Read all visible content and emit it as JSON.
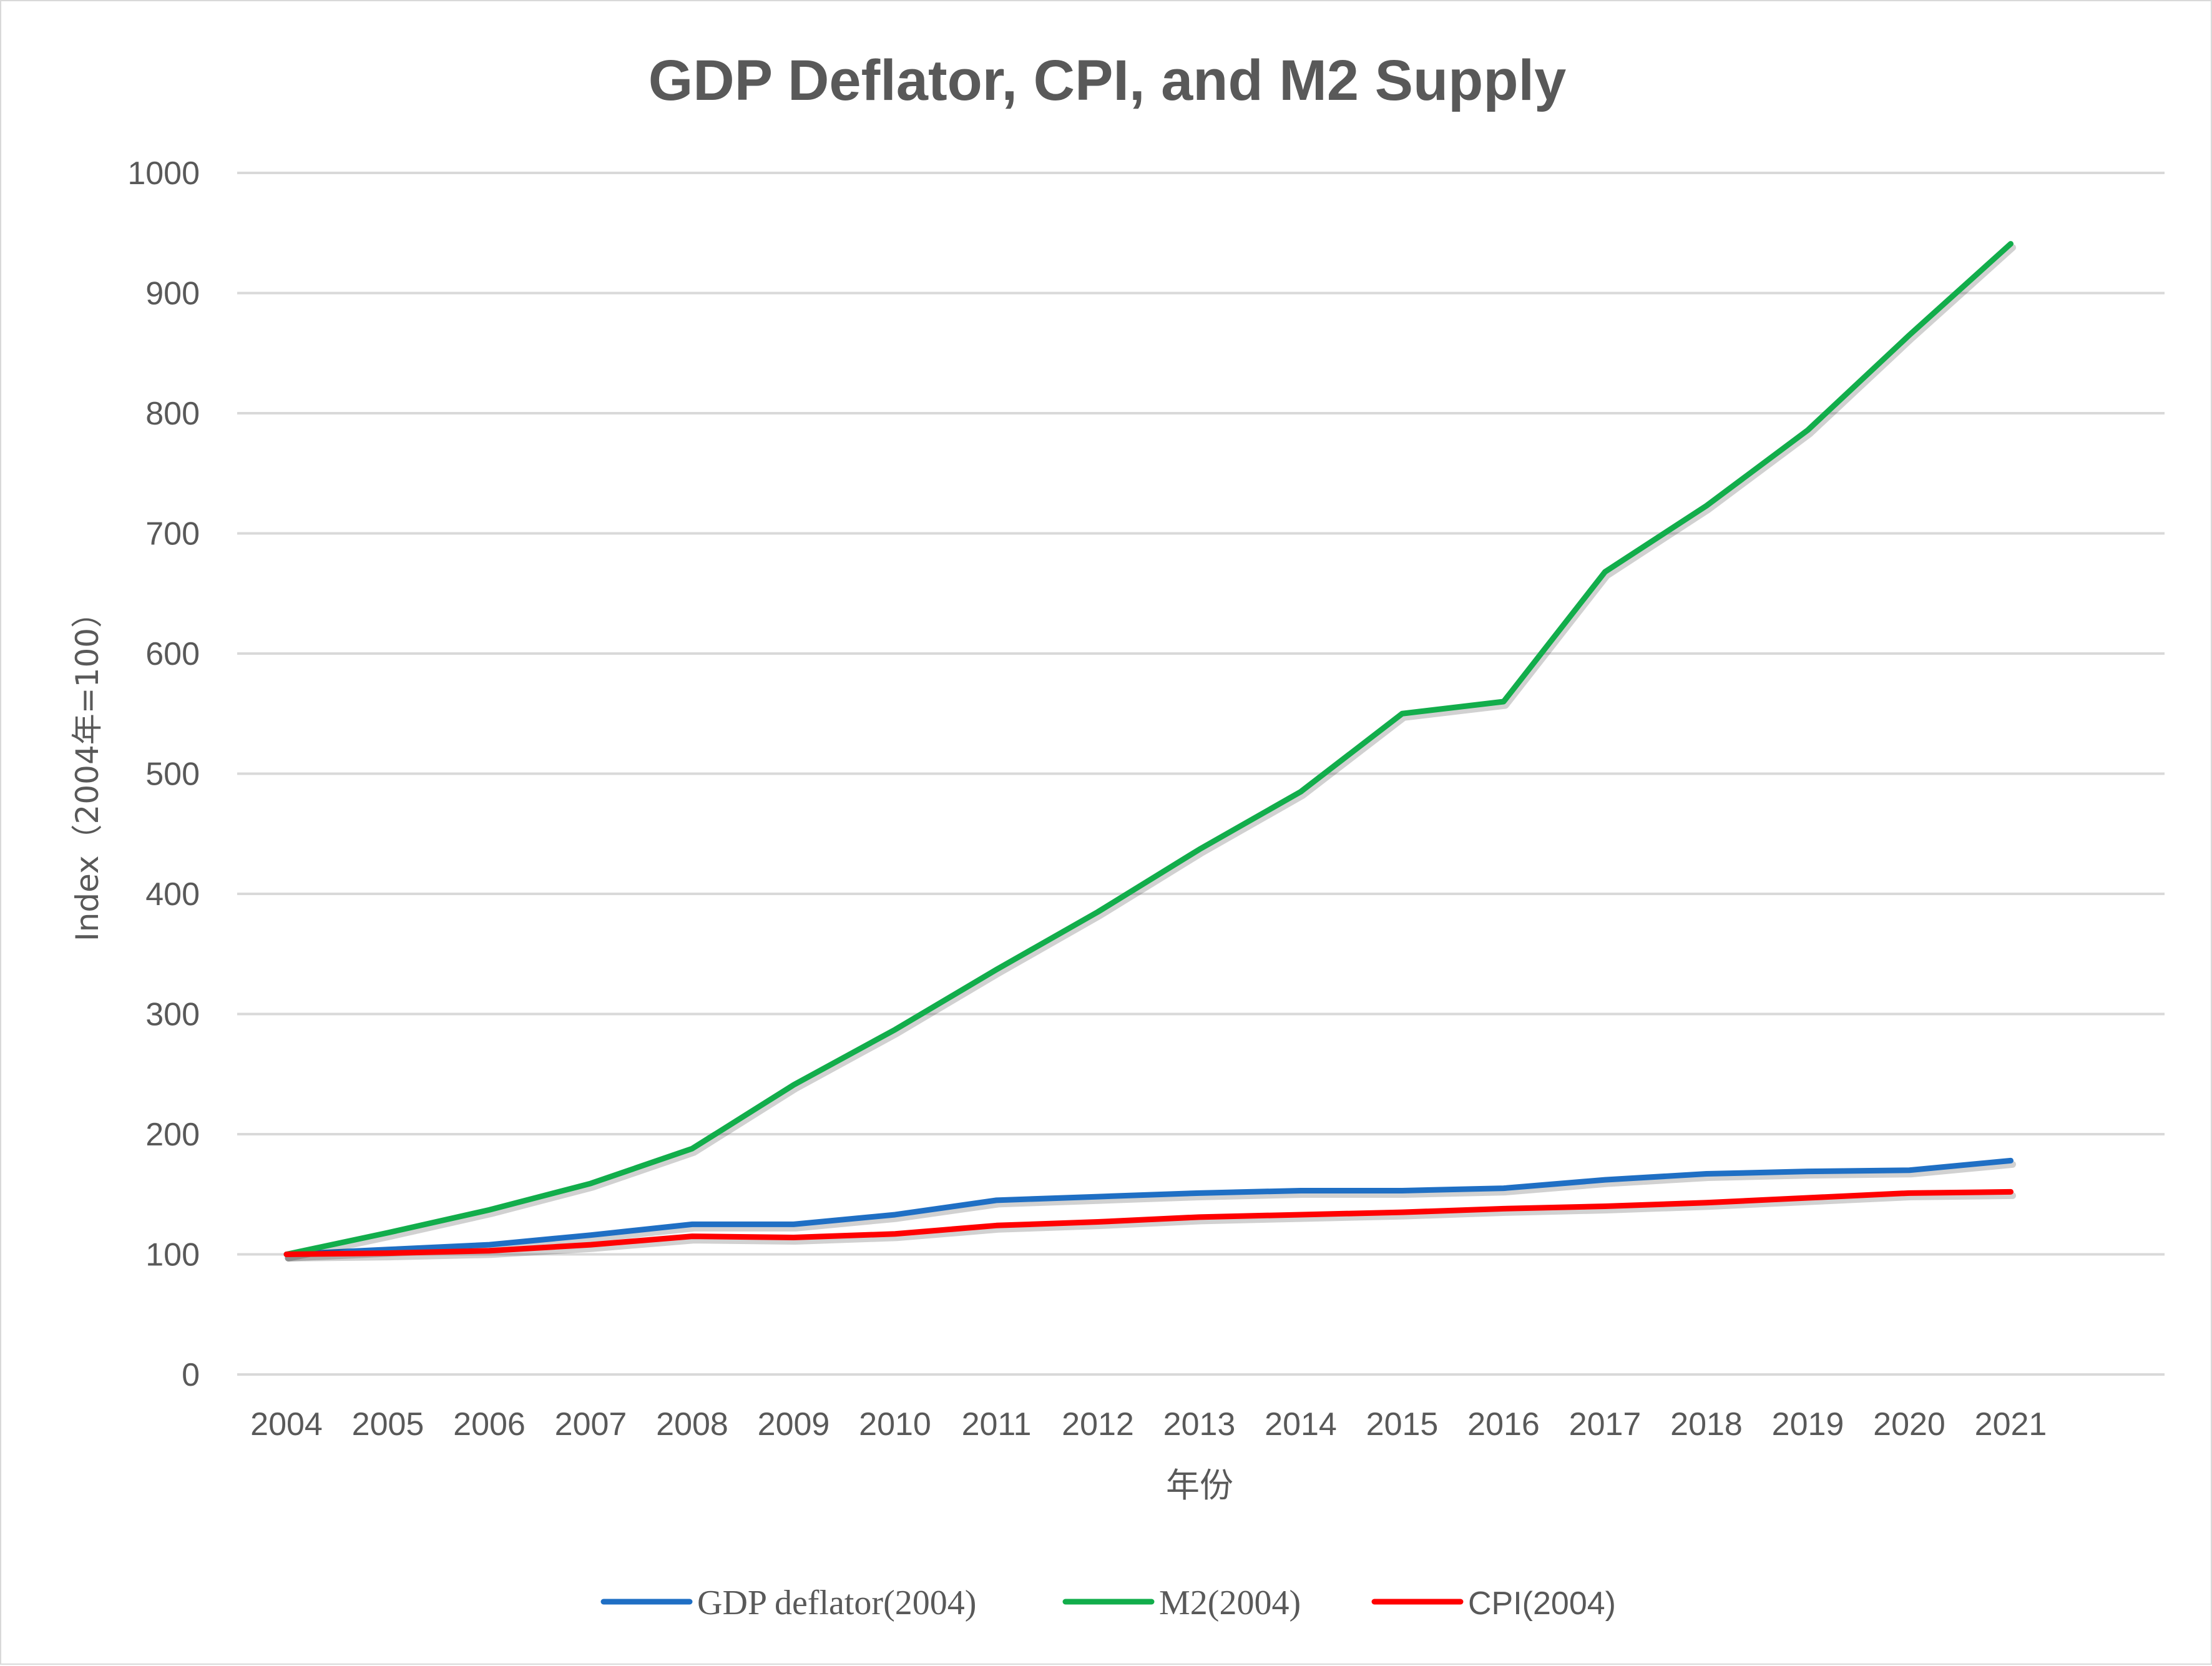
{
  "chart_data": {
    "type": "line",
    "title": "GDP Deflator, CPI, and M2 Supply",
    "xlabel": "年份",
    "ylabel": "Index（2004年=100）",
    "ylim": [
      0,
      1000
    ],
    "yticks": [
      0,
      100,
      200,
      300,
      400,
      500,
      600,
      700,
      800,
      900,
      1000
    ],
    "grid": true,
    "legend_position": "bottom",
    "categories": [
      "2004",
      "2005",
      "2006",
      "2007",
      "2008",
      "2009",
      "2010",
      "2011",
      "2012",
      "2013",
      "2014",
      "2015",
      "2016",
      "2017",
      "2018",
      "2019",
      "2020",
      "2021"
    ],
    "series": [
      {
        "name": "GDP deflator(2004)",
        "color": "#1f6fc4",
        "values": [
          100,
          104,
          108,
          116,
          125,
          125,
          133,
          145,
          148,
          151,
          153,
          153,
          155,
          162,
          167,
          169,
          170,
          178
        ]
      },
      {
        "name": "M2(2004)",
        "color": "#12ad4b",
        "values": [
          100,
          118,
          137,
          159,
          188,
          241,
          287,
          337,
          385,
          437,
          485,
          550,
          560,
          668,
          723,
          786,
          865,
          941
        ]
      },
      {
        "name": "CPI(2004)",
        "color": "#ff0000",
        "values": [
          100,
          101,
          103,
          108,
          115,
          114,
          117,
          124,
          127,
          131,
          133,
          135,
          138,
          140,
          143,
          147,
          151,
          152
        ]
      }
    ]
  }
}
